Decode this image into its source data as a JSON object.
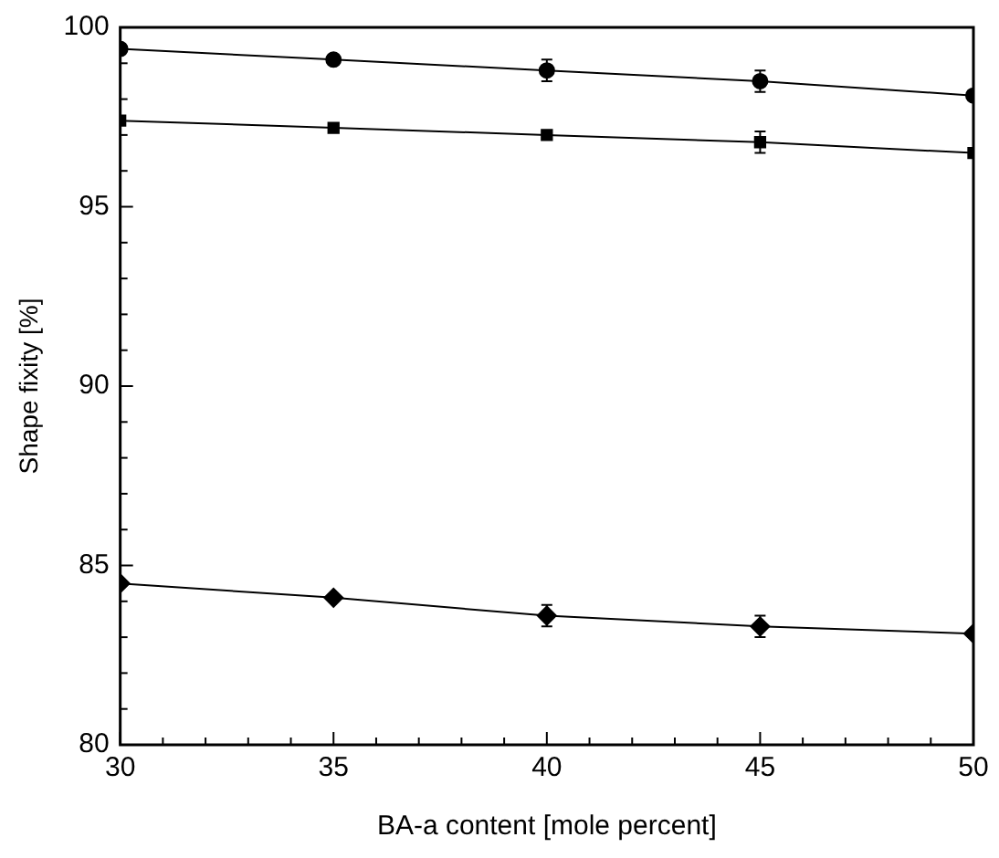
{
  "chart_data": {
    "type": "line",
    "xlabel": "BA-a content [mole percent]",
    "ylabel": "Shape fixity [%]",
    "x": [
      30,
      35,
      40,
      45,
      50
    ],
    "series": [
      {
        "color": "#000000",
        "marker": "circle",
        "values": [
          99.4,
          99.1,
          98.8,
          98.5,
          98.1
        ],
        "errors": [
          null,
          null,
          0.3,
          0.3,
          null
        ]
      },
      {
        "color": "#000000",
        "marker": "square",
        "values": [
          97.4,
          97.2,
          97.0,
          96.8,
          96.5
        ],
        "errors": [
          null,
          null,
          null,
          0.3,
          null
        ]
      },
      {
        "color": "#000000",
        "marker": "diamond",
        "values": [
          84.5,
          84.1,
          83.6,
          83.3,
          83.1
        ],
        "errors": [
          null,
          null,
          0.3,
          0.3,
          null
        ]
      }
    ],
    "xlim": [
      30,
      50
    ],
    "ylim": [
      80,
      100
    ],
    "xticks": [
      30,
      {
        "value": 31,
        "label": null
      },
      {
        "value": 32,
        "label": null
      },
      {
        "value": 33,
        "label": null
      },
      {
        "value": 34,
        "label": null
      },
      35,
      {
        "value": 36,
        "label": null
      },
      {
        "value": 37,
        "label": null
      },
      {
        "value": 38,
        "label": null
      },
      {
        "value": 39,
        "label": null
      },
      40,
      {
        "value": 41,
        "label": null
      },
      {
        "value": 42,
        "label": null
      },
      {
        "value": 43,
        "label": null
      },
      {
        "value": 44,
        "label": null
      },
      45,
      {
        "value": 46,
        "label": null
      },
      {
        "value": 47,
        "label": null
      },
      {
        "value": 48,
        "label": null
      },
      {
        "value": 49,
        "label": null
      },
      50
    ],
    "yticks": [
      80,
      {
        "value": 81,
        "label": null
      },
      {
        "value": 82,
        "label": null
      },
      {
        "value": 83,
        "label": null
      },
      {
        "value": 84,
        "label": null
      },
      85,
      {
        "value": 86,
        "label": null
      },
      {
        "value": 87,
        "label": null
      },
      {
        "value": 88,
        "label": null
      },
      {
        "value": 89,
        "label": null
      },
      90,
      {
        "value": 91,
        "label": null
      },
      {
        "value": 92,
        "label": null
      },
      {
        "value": 93,
        "label": null
      },
      {
        "value": 94,
        "label": null
      },
      95,
      {
        "value": 96,
        "label": null
      },
      {
        "value": 97,
        "label": null
      },
      {
        "value": 98,
        "label": null
      },
      {
        "value": 99,
        "label": null
      },
      100
    ],
    "grid": false,
    "legend": false,
    "line_style": "solid"
  }
}
